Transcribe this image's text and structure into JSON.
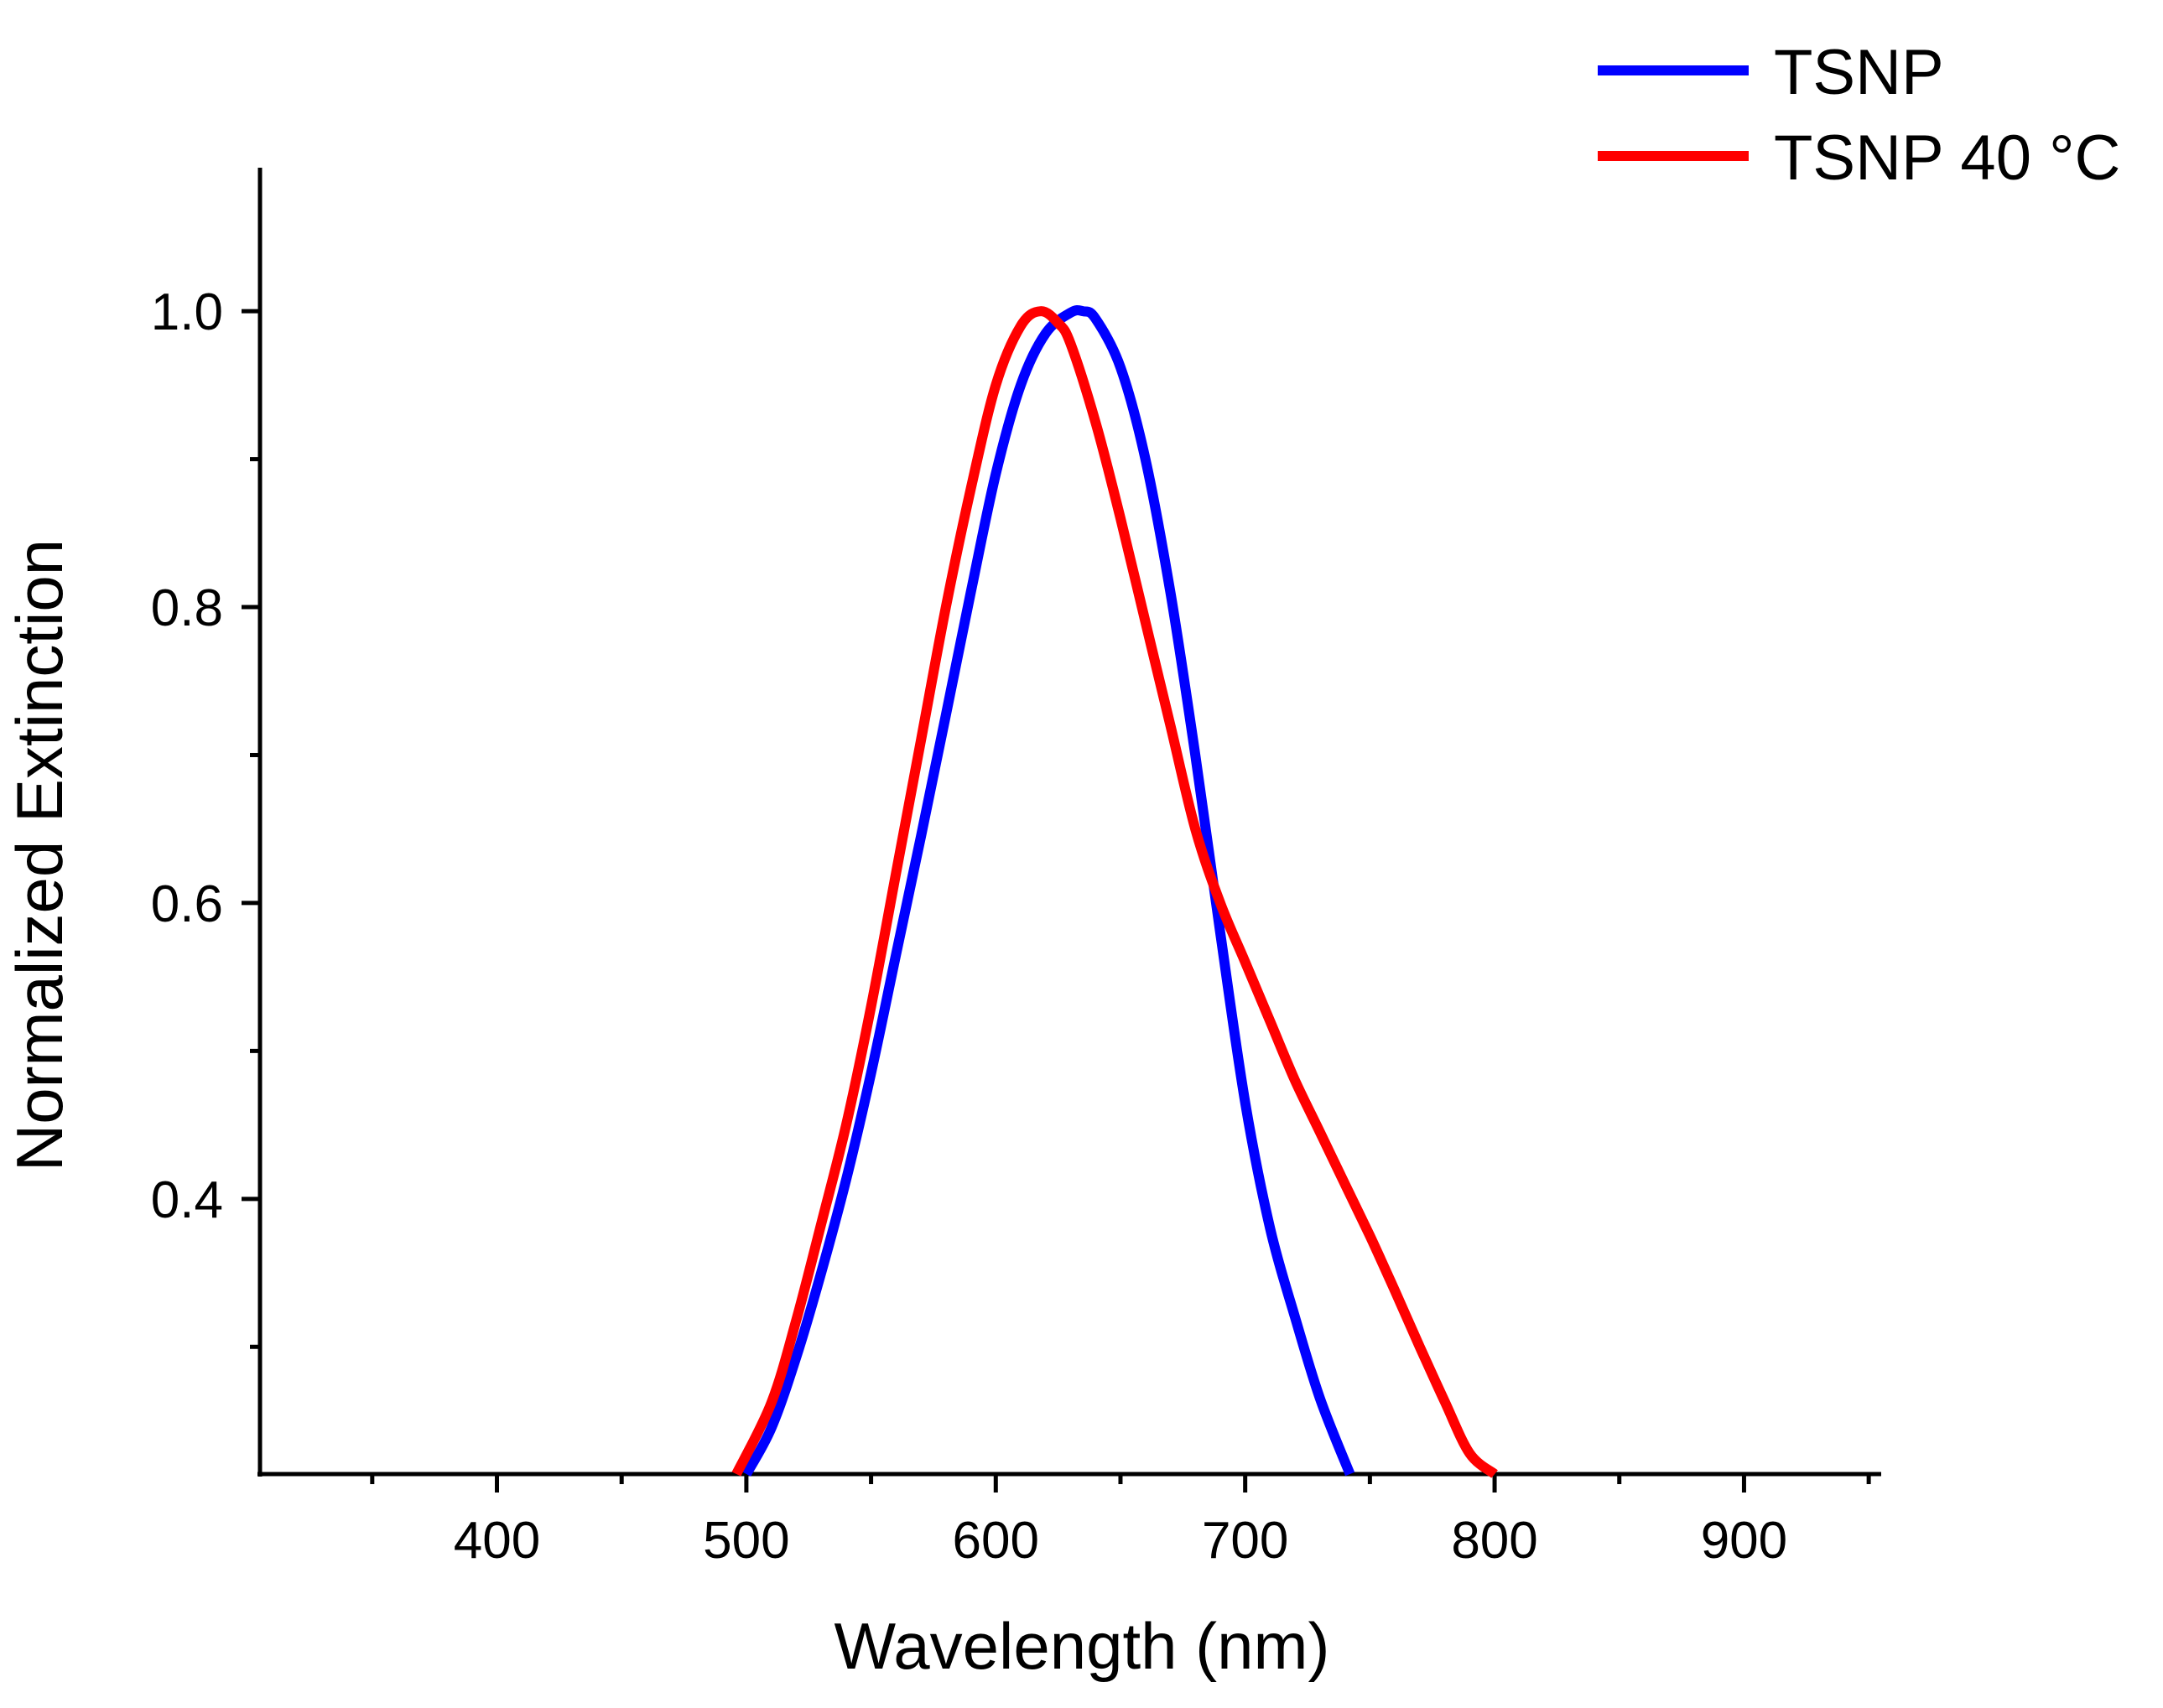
{
  "chart_data": {
    "type": "line",
    "title": "",
    "xlabel": "Wavelength (nm)",
    "ylabel": "Normalized Extinction",
    "xlim": [
      305,
      955
    ],
    "ylim": [
      0.214,
      1.097
    ],
    "xticks": [
      400,
      500,
      600,
      700,
      800,
      900
    ],
    "xtick_labels": [
      "400",
      "500",
      "600",
      "700",
      "800",
      "900"
    ],
    "xminor": [
      350,
      450,
      550,
      650,
      750,
      850,
      950
    ],
    "yticks": [
      0.4,
      0.6,
      0.8,
      1.0
    ],
    "ytick_labels": [
      "0.4",
      "0.6",
      "0.8",
      "1.0"
    ],
    "yminor": [
      0.3,
      0.5,
      0.7,
      0.9
    ],
    "grid": false,
    "legend_position": "top-right",
    "series": [
      {
        "name": "TSNP",
        "color": "#0000ff",
        "x": [
          500,
          510,
          520,
          530,
          540,
          550,
          560,
          570,
          580,
          590,
          600,
          610,
          620,
          630,
          635,
          640,
          650,
          660,
          670,
          680,
          690,
          700,
          710,
          720,
          730,
          742
        ],
        "y": [
          0.214,
          0.245,
          0.293,
          0.35,
          0.413,
          0.485,
          0.565,
          0.645,
          0.727,
          0.81,
          0.89,
          0.95,
          0.985,
          0.999,
          1.0,
          0.995,
          0.962,
          0.9,
          0.81,
          0.7,
          0.58,
          0.465,
          0.38,
          0.32,
          0.265,
          0.214
        ]
      },
      {
        "name": "TSNP 40 °C",
        "color": "#ff0000",
        "x": [
          496,
          510,
          520,
          530,
          540,
          550,
          560,
          570,
          580,
          590,
          600,
          610,
          618,
          625,
          630,
          640,
          650,
          660,
          670,
          680,
          690,
          700,
          710,
          720,
          730,
          740,
          750,
          760,
          770,
          780,
          790,
          800
        ],
        "y": [
          0.214,
          0.262,
          0.318,
          0.383,
          0.45,
          0.53,
          0.62,
          0.71,
          0.8,
          0.88,
          0.95,
          0.99,
          1.0,
          0.992,
          0.978,
          0.925,
          0.86,
          0.79,
          0.72,
          0.65,
          0.6,
          0.56,
          0.52,
          0.48,
          0.445,
          0.41,
          0.375,
          0.338,
          0.3,
          0.263,
          0.228,
          0.214
        ]
      }
    ]
  }
}
